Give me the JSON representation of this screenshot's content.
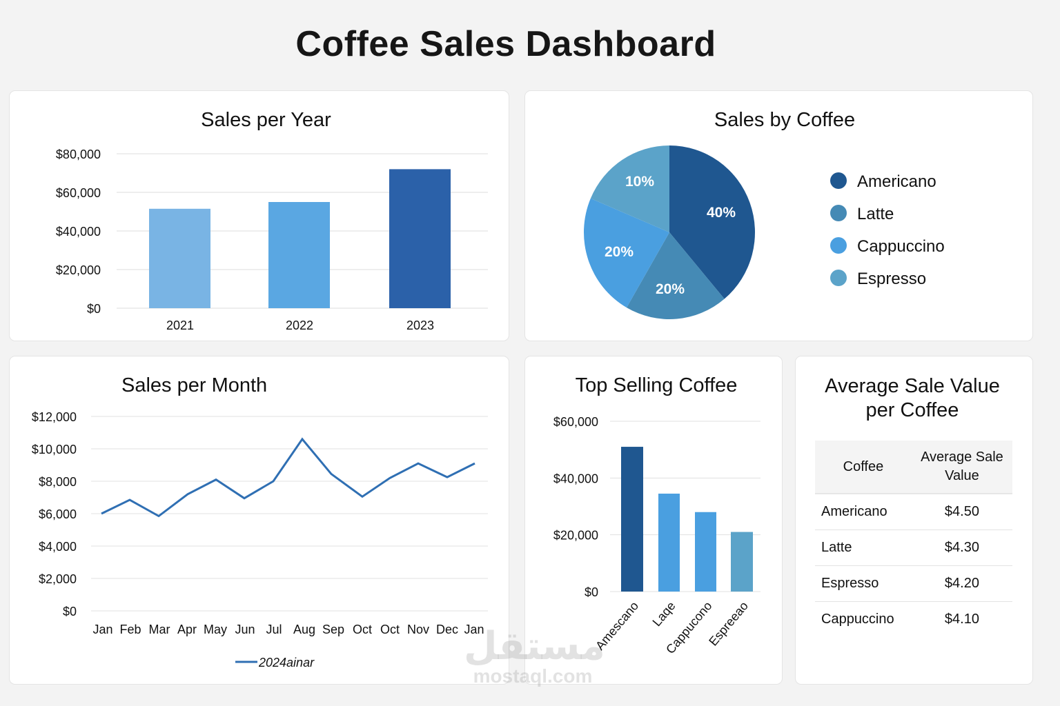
{
  "page": {
    "title": "Coffee Sales Dashboard"
  },
  "colors": {
    "background": "#f3f3f3",
    "americano": "#1f5790",
    "latte": "#458ab5",
    "cappuccino": "#4a9fe0",
    "espresso": "#5ba3c9",
    "bar_2021": "#79b4e4",
    "bar_2022": "#5aa7e2",
    "bar_2023": "#2b61a9",
    "line": "#2f6fb3"
  },
  "sales_per_year": {
    "title": "Sales per Year",
    "y_ticks": [
      "$80,000",
      "$60,000",
      "$40,000",
      "$20,000",
      "$0"
    ],
    "categories": [
      "2021",
      "2022",
      "2023"
    ]
  },
  "sales_by_coffee": {
    "title": "Sales by Coffee",
    "slice_labels": [
      "40%",
      "20%",
      "20%",
      "10%"
    ],
    "legend": [
      "Americano",
      "Latte",
      "Cappuccino",
      "Espresso"
    ]
  },
  "sales_per_month": {
    "title": "Sales per Month",
    "y_ticks": [
      "$12,000",
      "$10,000",
      "$8,000",
      "$6,000",
      "$4,000",
      "$2,000",
      "$0"
    ],
    "x_labels": [
      "Jan",
      "Feb",
      "Mar",
      "Apr",
      "May",
      "Jun",
      "Jul",
      "Aug",
      "Sep",
      "Oct",
      "Oct",
      "Nov",
      "Dec",
      "Jan"
    ],
    "legend": "2024ainar"
  },
  "top_selling": {
    "title": "Top Selling Coffee",
    "y_ticks": [
      "$60,000",
      "$40,000",
      "$20,000",
      "$0"
    ],
    "x_labels": [
      "Amescano",
      "Laqe",
      "Cappucono",
      "Espreeao"
    ]
  },
  "avg_sale": {
    "title_line1": "Average Sale Value",
    "title_line2": "per Coffee",
    "headers": {
      "coffee": "Coffee",
      "value_line1": "Average Sale",
      "value_line2": "Value"
    },
    "rows": [
      {
        "coffee": "Americano",
        "value": "$4.50"
      },
      {
        "coffee": "Latte",
        "value": "$4.30"
      },
      {
        "coffee": "Espresso",
        "value": "$4.20"
      },
      {
        "coffee": "Cappuccino",
        "value": "$4.10"
      }
    ]
  },
  "watermark": {
    "arabic": "مستقل",
    "latin": "mostaql.com"
  },
  "chart_data": [
    {
      "type": "bar",
      "title": "Sales per Year",
      "categories": [
        "2021",
        "2022",
        "2023"
      ],
      "values": [
        51500,
        55000,
        72000
      ],
      "xlabel": "",
      "ylabel": "",
      "ylim": [
        0,
        80000
      ],
      "yticks": [
        0,
        20000,
        40000,
        60000,
        80000
      ],
      "grid": true
    },
    {
      "type": "pie",
      "title": "Sales by Coffee",
      "categories": [
        "Americano",
        "Latte",
        "Cappuccino",
        "Espresso"
      ],
      "values": [
        40,
        20,
        20,
        10
      ],
      "labels_shown": [
        "40%",
        "20%",
        "20%",
        "10%"
      ],
      "legend_position": "right"
    },
    {
      "type": "line",
      "title": "Sales per Month",
      "x": [
        "Jan",
        "Feb",
        "Mar",
        "Apr",
        "May",
        "Jun",
        "Jul",
        "Aug",
        "Sep",
        "Oct",
        "Oct",
        "Nov",
        "Dec",
        "Jan"
      ],
      "series": [
        {
          "name": "2024ainar",
          "values": [
            6000,
            6850,
            5850,
            7200,
            8100,
            6950,
            8000,
            10600,
            8450,
            7050,
            8200,
            9100,
            8250,
            9100
          ]
        }
      ],
      "ylim": [
        0,
        12000
      ],
      "yticks": [
        0,
        2000,
        4000,
        6000,
        8000,
        10000,
        12000
      ],
      "grid": true,
      "legend_position": "bottom"
    },
    {
      "type": "bar",
      "title": "Top Selling Coffee",
      "categories": [
        "Amescano",
        "Laqe",
        "Cappucono",
        "Espreeao"
      ],
      "values": [
        51000,
        34500,
        28000,
        21000
      ],
      "ylim": [
        0,
        60000
      ],
      "yticks": [
        0,
        20000,
        40000,
        60000
      ],
      "grid": true
    },
    {
      "type": "table",
      "title": "Average Sale Value per Coffee",
      "columns": [
        "Coffee",
        "Average Sale Value"
      ],
      "rows": [
        [
          "Americano",
          "$4.50"
        ],
        [
          "Latte",
          "$4.30"
        ],
        [
          "Espresso",
          "$4.20"
        ],
        [
          "Cappuccino",
          "$4.10"
        ]
      ]
    }
  ]
}
